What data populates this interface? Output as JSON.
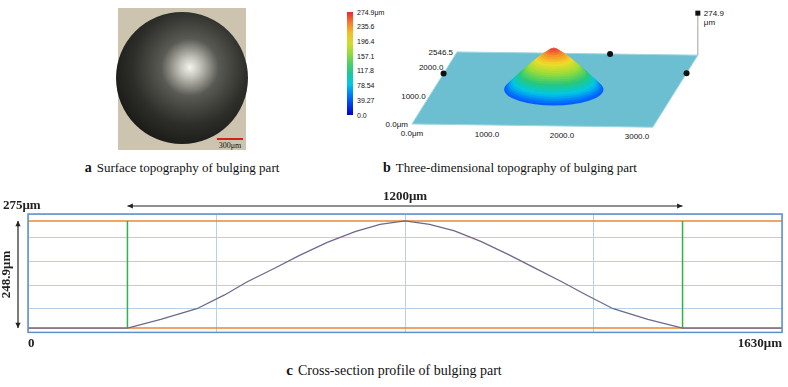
{
  "panels": [
    {
      "caption": "a Surface topography of bulging part",
      "scale_bar": {
        "value": 300,
        "label": "300μm"
      }
    },
    {
      "caption": "b Three-dimensional topography of bulging part",
      "colorbar": {
        "range": [
          0,
          274.9
        ],
        "ticks": [
          {
            "value": 274.9,
            "label": "274.9μm"
          },
          235.6,
          196.4,
          157.1,
          117.8,
          78.54,
          39.27,
          {
            "value": 0,
            "label": "0.0"
          }
        ]
      },
      "x_ticks": [
        {
          "value": 0,
          "label": "0.0μm"
        },
        {
          "value": 1000,
          "label": "1000.0"
        },
        {
          "value": 2000,
          "label": "2000.0"
        },
        {
          "value": 3000,
          "label": "3000.0"
        }
      ],
      "y_ticks": [
        {
          "value": 0,
          "label": "0.0μm"
        },
        {
          "value": 1000,
          "label": "1000.0"
        },
        {
          "value": 2000,
          "label": "2000.0"
        },
        {
          "value": 2546.5,
          "label": "2546.5"
        }
      ],
      "z_ticks": [
        {
          "value": 274.9,
          "label": "274.9 μm"
        }
      ]
    }
  ],
  "chart_data": {
    "type": "line",
    "title": "c Cross-section profile of bulging part",
    "color": "#6a6a8e",
    "grid": true,
    "x": [
      0,
      215,
      287,
      365,
      425,
      473,
      533,
      587,
      647,
      707,
      761,
      815,
      868,
      922,
      980,
      1040,
      1095,
      1155,
      1205,
      1265,
      1340,
      1415,
      1630
    ],
    "values": [
      10,
      10,
      30,
      55,
      87,
      117,
      149,
      179,
      209,
      234,
      251,
      258.9,
      251,
      236,
      211,
      180,
      150,
      117,
      88,
      55,
      30,
      10,
      10
    ],
    "xlim": [
      0,
      1630
    ],
    "ylim": [
      0,
      275
    ],
    "xticks": [
      0,
      {
        "value": 407.5,
        "label": null
      },
      {
        "value": 815,
        "label": null
      },
      {
        "value": 1222.5,
        "label": null
      },
      {
        "value": 1630,
        "label": "1630μm"
      }
    ],
    "yticks": [
      {
        "value": 0,
        "label": null
      },
      {
        "value": 55,
        "label": null
      },
      {
        "value": 110,
        "label": null
      },
      {
        "value": 165,
        "label": null
      },
      {
        "value": 220,
        "label": null
      },
      {
        "value": 275,
        "label": "275μm"
      }
    ],
    "annotations": [
      {
        "text": "1200μm",
        "x": [
          215,
          1415
        ]
      },
      {
        "text": "248.9μm",
        "y": [
          10,
          258.9
        ]
      }
    ]
  }
}
